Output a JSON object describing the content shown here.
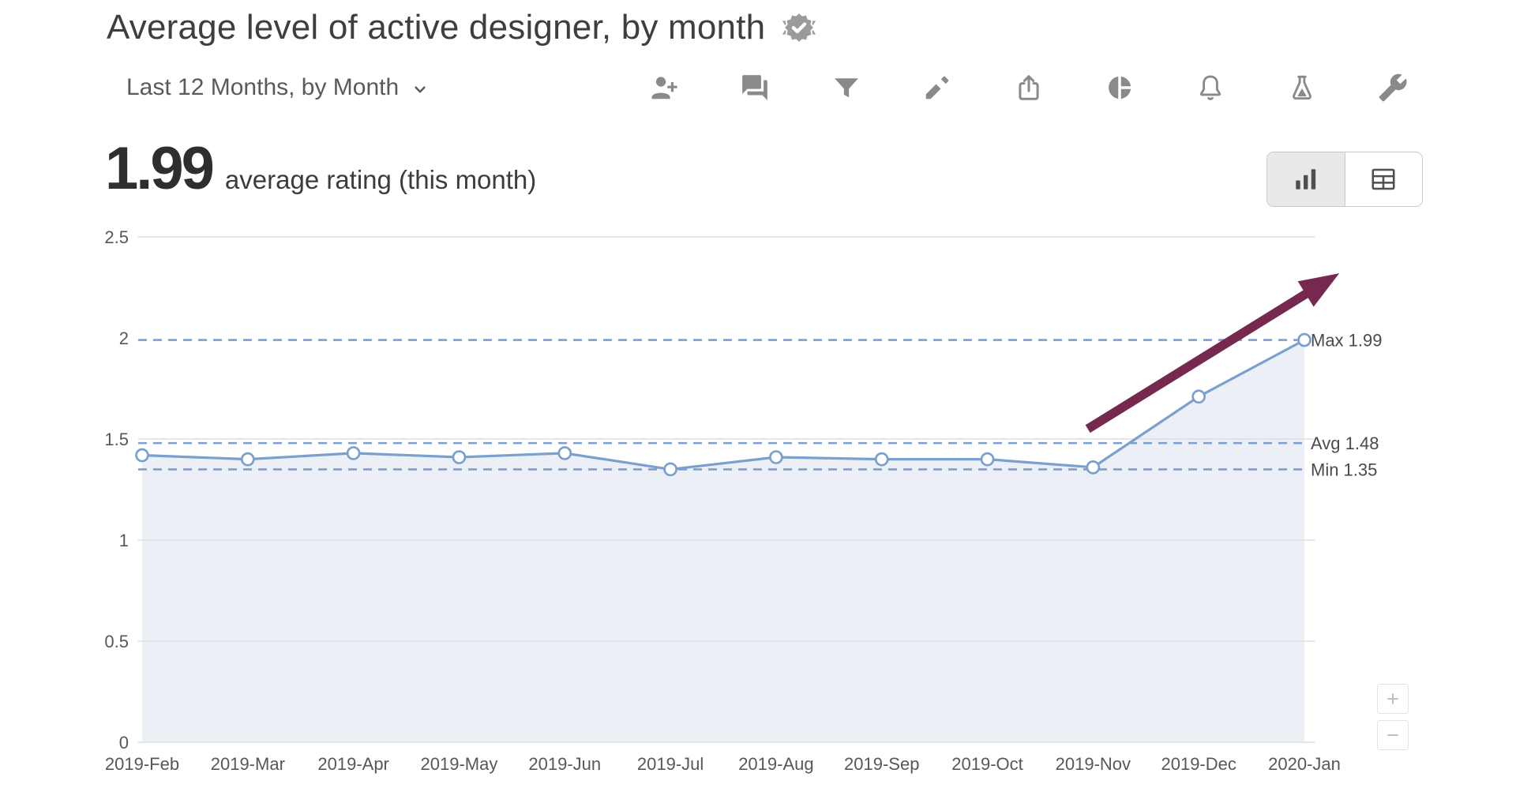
{
  "header": {
    "title": "Average level of active designer, by month",
    "badge_icon": "certified-badge"
  },
  "controls": {
    "date_filter_label": "Last 12 Months, by Month",
    "toolbar_icons": [
      "add-user",
      "comments",
      "filter",
      "edit-pen",
      "share-export",
      "pie-chart",
      "notifications-bell",
      "experiments-flask",
      "settings-wrench"
    ]
  },
  "kpi": {
    "value": "1.99",
    "label": "average rating (this month)"
  },
  "view_toggle": {
    "options": [
      {
        "id": "chart-view",
        "icon": "bar-chart-icon",
        "selected": true
      },
      {
        "id": "table-view",
        "icon": "table-grid-icon",
        "selected": false
      }
    ]
  },
  "chart_data": {
    "type": "line",
    "x": [
      "2019-Feb",
      "2019-Mar",
      "2019-Apr",
      "2019-May",
      "2019-Jun",
      "2019-Jul",
      "2019-Aug",
      "2019-Sep",
      "2019-Oct",
      "2019-Nov",
      "2019-Dec",
      "2020-Jan"
    ],
    "series": [
      {
        "name": "average rating",
        "values": [
          1.42,
          1.4,
          1.43,
          1.41,
          1.43,
          1.35,
          1.41,
          1.4,
          1.4,
          1.36,
          1.71,
          1.99
        ]
      }
    ],
    "ylim": [
      0,
      2.5
    ],
    "yticks": [
      0,
      0.5,
      1,
      1.5,
      2,
      2.5
    ],
    "ytick_labels": [
      "0",
      "0.5",
      "1",
      "1.5",
      "2",
      "2.5"
    ],
    "reference_lines": [
      {
        "label": "Max 1.99",
        "value": 1.99
      },
      {
        "label": "Avg 1.48",
        "value": 1.48
      },
      {
        "label": "Min 1.35",
        "value": 1.35
      }
    ],
    "grid": "horizontal",
    "area_fill": true,
    "legend": "none",
    "colors": {
      "line": "#7AA0CE",
      "area": "#ECF0F6",
      "reference_dash": "#7B9FD1",
      "grid": "#DBDDDF",
      "annotation_arrow": "#76294E"
    },
    "annotations": [
      {
        "type": "arrow",
        "from": {
          "x_index": 8.95,
          "value": 1.55
        },
        "to": {
          "x_index": 11.33,
          "value": 2.32
        }
      }
    ]
  },
  "zoom_controls": {
    "zoom_in_label": "+",
    "zoom_out_label": "−"
  }
}
